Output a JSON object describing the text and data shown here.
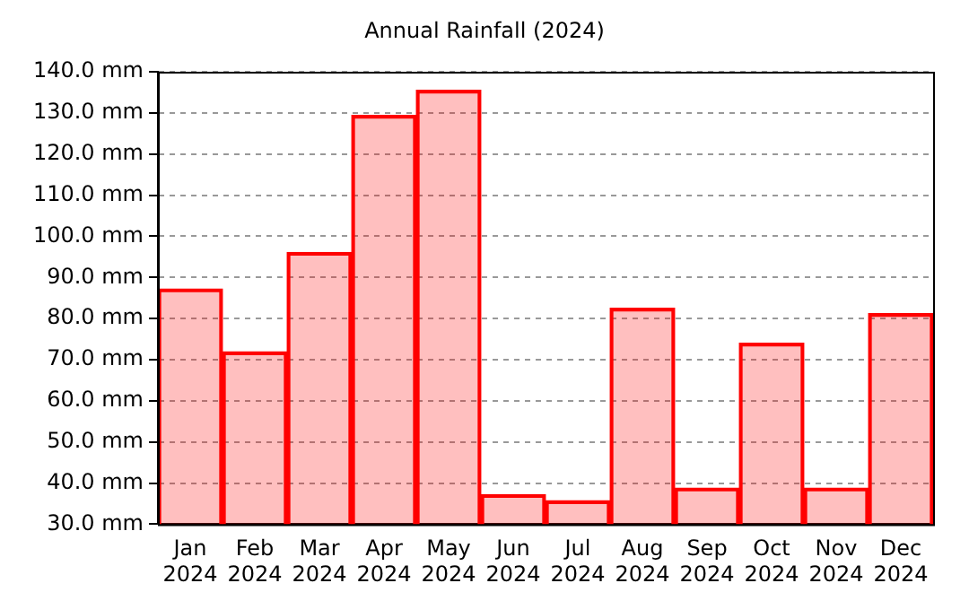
{
  "chart_data": {
    "type": "bar",
    "title": "Annual Rainfall (2024)",
    "categories": [
      "Jan 2024",
      "Feb 2024",
      "Mar 2024",
      "Apr 2024",
      "May 2024",
      "Jun 2024",
      "Jul 2024",
      "Aug 2024",
      "Sep 2024",
      "Oct 2024",
      "Nov 2024",
      "Dec 2024"
    ],
    "values": [
      87.2,
      71.9,
      96.1,
      129.4,
      135.5,
      37.2,
      35.7,
      82.5,
      38.8,
      74.0,
      38.8,
      81.2
    ],
    "color": "#ff0000",
    "ylim": [
      30,
      140
    ],
    "yticks": [
      {
        "value": 30,
        "label": "30.0 mm"
      },
      {
        "value": 40,
        "label": "40.0 mm"
      },
      {
        "value": 50,
        "label": "50.0 mm"
      },
      {
        "value": 60,
        "label": "60.0 mm"
      },
      {
        "value": 70,
        "label": "70.0 mm"
      },
      {
        "value": 80,
        "label": "80.0 mm"
      },
      {
        "value": 90,
        "label": "90.0 mm"
      },
      {
        "value": 100,
        "label": "100.0 mm"
      },
      {
        "value": 110,
        "label": "110.0 mm"
      },
      {
        "value": 120,
        "label": "120.0 mm"
      },
      {
        "value": 130,
        "label": "130.0 mm"
      },
      {
        "value": 140,
        "label": "140.0 mm"
      }
    ],
    "grid": "y"
  }
}
